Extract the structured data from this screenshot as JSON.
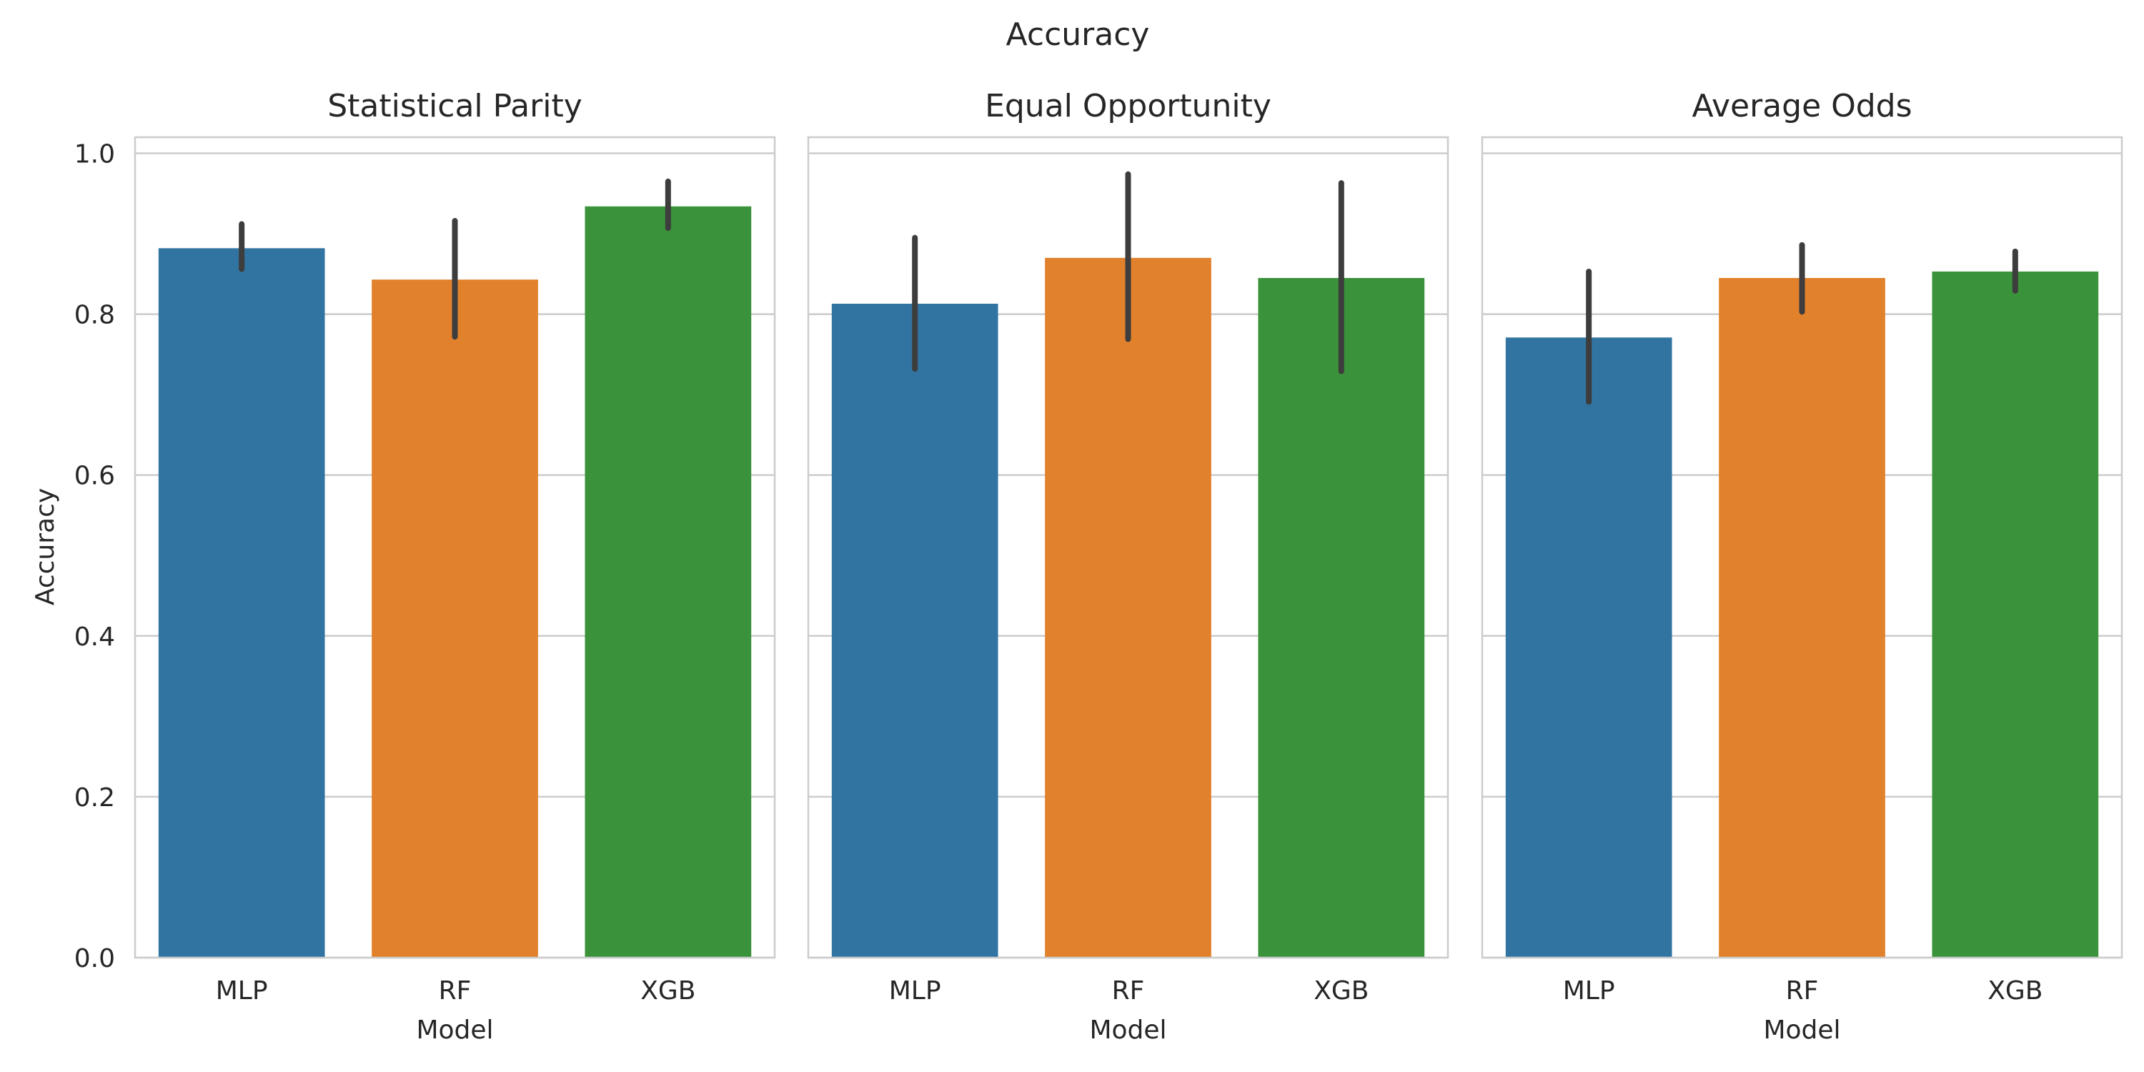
{
  "chart_data": {
    "type": "bar",
    "title": "Accuracy",
    "ylabel": "Accuracy",
    "ylim": [
      0,
      1.02
    ],
    "yticks": [
      "0.0",
      "0.2",
      "0.4",
      "0.6",
      "0.8",
      "1.0"
    ],
    "grid": "horizontal",
    "colors": [
      "#3274a1",
      "#e1812c",
      "#3a923a"
    ],
    "panels": [
      {
        "title": "Statistical Parity",
        "xlabel": "Model",
        "categories": [
          "MLP",
          "RF",
          "XGB"
        ],
        "values": [
          0.882,
          0.843,
          0.934
        ],
        "ci_low": [
          0.856,
          0.772,
          0.907
        ],
        "ci_high": [
          0.912,
          0.916,
          0.965
        ]
      },
      {
        "title": "Equal Opportunity",
        "xlabel": "Model",
        "categories": [
          "MLP",
          "RF",
          "XGB"
        ],
        "values": [
          0.813,
          0.87,
          0.845
        ],
        "ci_low": [
          0.732,
          0.769,
          0.729
        ],
        "ci_high": [
          0.895,
          0.974,
          0.963
        ]
      },
      {
        "title": "Average Odds",
        "xlabel": "Model",
        "categories": [
          "MLP",
          "RF",
          "XGB"
        ],
        "values": [
          0.771,
          0.845,
          0.853
        ],
        "ci_low": [
          0.691,
          0.803,
          0.829
        ],
        "ci_high": [
          0.853,
          0.886,
          0.878
        ]
      }
    ]
  }
}
